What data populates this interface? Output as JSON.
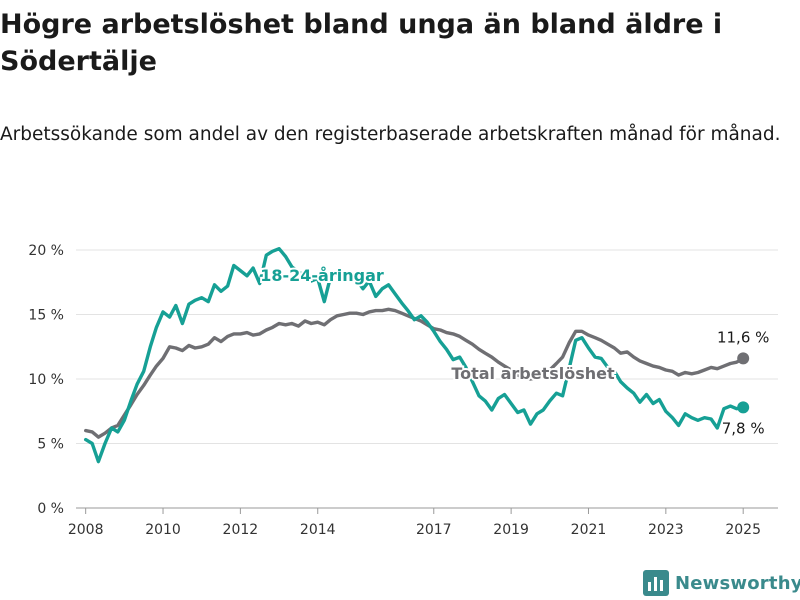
{
  "title": "Högre arbetslöshet bland unga än bland äldre i Södertälje",
  "subtitle": "Arbetssökande som andel av den registerbaserade arbetskraften månad för månad.",
  "brand": {
    "name": "Newsworthy",
    "color": "#3a8a8c",
    "icon": "bar-chart-logo-icon"
  },
  "chart_data": {
    "type": "line",
    "x_unit": "year",
    "xlim": [
      2007.75,
      2025.9
    ],
    "ylim": [
      0,
      20
    ],
    "y_ticks": [
      0,
      5,
      10,
      15,
      20
    ],
    "y_tick_labels": [
      "0 %",
      "5 %",
      "10 %",
      "15 %",
      "20 %"
    ],
    "x_ticks": [
      2008,
      2010,
      2012,
      2014,
      2017,
      2019,
      2021,
      2023,
      2025
    ],
    "x_tick_labels": [
      "2008",
      "2010",
      "2012",
      "2014",
      "2017",
      "2019",
      "2021",
      "2023",
      "2025"
    ],
    "grid": "horizontal",
    "legend": "none (direct labels)",
    "series": [
      {
        "name": "18-24-åringar",
        "color": "#16a095",
        "end_label": "7,8 %",
        "points": [
          [
            2008.0,
            5.3
          ],
          [
            2008.17,
            5.0
          ],
          [
            2008.33,
            3.6
          ],
          [
            2008.5,
            5.0
          ],
          [
            2008.67,
            6.2
          ],
          [
            2008.83,
            5.9
          ],
          [
            2009.0,
            6.8
          ],
          [
            2009.17,
            8.3
          ],
          [
            2009.33,
            9.6
          ],
          [
            2009.5,
            10.6
          ],
          [
            2009.67,
            12.5
          ],
          [
            2009.83,
            14.0
          ],
          [
            2010.0,
            15.2
          ],
          [
            2010.17,
            14.8
          ],
          [
            2010.33,
            15.7
          ],
          [
            2010.5,
            14.3
          ],
          [
            2010.67,
            15.8
          ],
          [
            2010.83,
            16.1
          ],
          [
            2011.0,
            16.3
          ],
          [
            2011.17,
            16.0
          ],
          [
            2011.33,
            17.3
          ],
          [
            2011.5,
            16.8
          ],
          [
            2011.67,
            17.2
          ],
          [
            2011.83,
            18.8
          ],
          [
            2012.0,
            18.4
          ],
          [
            2012.17,
            18.0
          ],
          [
            2012.33,
            18.6
          ],
          [
            2012.5,
            17.4
          ],
          [
            2012.67,
            19.6
          ],
          [
            2012.83,
            19.9
          ],
          [
            2013.0,
            20.1
          ],
          [
            2013.17,
            19.5
          ],
          [
            2013.33,
            18.7
          ],
          [
            2013.5,
            18.3
          ],
          [
            2013.67,
            18.0
          ],
          [
            2013.83,
            17.6
          ],
          [
            2014.0,
            17.8
          ],
          [
            2014.17,
            16.0
          ],
          [
            2014.33,
            17.9
          ],
          [
            2014.5,
            18.2
          ],
          [
            2014.67,
            17.8
          ],
          [
            2014.83,
            18.1
          ],
          [
            2015.0,
            17.7
          ],
          [
            2015.17,
            17.0
          ],
          [
            2015.33,
            17.6
          ],
          [
            2015.5,
            16.4
          ],
          [
            2015.67,
            17.0
          ],
          [
            2015.83,
            17.3
          ],
          [
            2016.0,
            16.6
          ],
          [
            2016.17,
            15.9
          ],
          [
            2016.33,
            15.3
          ],
          [
            2016.5,
            14.6
          ],
          [
            2016.67,
            14.9
          ],
          [
            2016.83,
            14.4
          ],
          [
            2017.0,
            13.7
          ],
          [
            2017.17,
            12.9
          ],
          [
            2017.33,
            12.3
          ],
          [
            2017.5,
            11.5
          ],
          [
            2017.67,
            11.7
          ],
          [
            2017.83,
            10.9
          ],
          [
            2018.0,
            9.8
          ],
          [
            2018.17,
            8.7
          ],
          [
            2018.33,
            8.3
          ],
          [
            2018.5,
            7.6
          ],
          [
            2018.67,
            8.5
          ],
          [
            2018.83,
            8.8
          ],
          [
            2019.0,
            8.1
          ],
          [
            2019.17,
            7.4
          ],
          [
            2019.33,
            7.6
          ],
          [
            2019.5,
            6.5
          ],
          [
            2019.67,
            7.3
          ],
          [
            2019.83,
            7.6
          ],
          [
            2020.0,
            8.3
          ],
          [
            2020.17,
            8.9
          ],
          [
            2020.33,
            8.7
          ],
          [
            2020.5,
            10.8
          ],
          [
            2020.67,
            13.0
          ],
          [
            2020.83,
            13.2
          ],
          [
            2021.0,
            12.4
          ],
          [
            2021.17,
            11.7
          ],
          [
            2021.33,
            11.6
          ],
          [
            2021.5,
            10.9
          ],
          [
            2021.67,
            10.6
          ],
          [
            2021.83,
            9.8
          ],
          [
            2022.0,
            9.3
          ],
          [
            2022.17,
            8.9
          ],
          [
            2022.33,
            8.2
          ],
          [
            2022.5,
            8.8
          ],
          [
            2022.67,
            8.1
          ],
          [
            2022.83,
            8.4
          ],
          [
            2023.0,
            7.5
          ],
          [
            2023.17,
            7.0
          ],
          [
            2023.33,
            6.4
          ],
          [
            2023.5,
            7.3
          ],
          [
            2023.67,
            7.0
          ],
          [
            2023.83,
            6.8
          ],
          [
            2024.0,
            7.0
          ],
          [
            2024.17,
            6.9
          ],
          [
            2024.33,
            6.2
          ],
          [
            2024.5,
            7.7
          ],
          [
            2024.67,
            7.9
          ],
          [
            2024.83,
            7.7
          ],
          [
            2025.0,
            7.8
          ]
        ]
      },
      {
        "name": "Total arbetslöshet",
        "color": "#6f6f73",
        "end_label": "11,6 %",
        "points": [
          [
            2008.0,
            6.0
          ],
          [
            2008.17,
            5.9
          ],
          [
            2008.33,
            5.5
          ],
          [
            2008.5,
            5.8
          ],
          [
            2008.67,
            6.2
          ],
          [
            2008.83,
            6.4
          ],
          [
            2009.0,
            7.2
          ],
          [
            2009.17,
            8.0
          ],
          [
            2009.33,
            8.8
          ],
          [
            2009.5,
            9.5
          ],
          [
            2009.67,
            10.3
          ],
          [
            2009.83,
            11.0
          ],
          [
            2010.0,
            11.6
          ],
          [
            2010.17,
            12.5
          ],
          [
            2010.33,
            12.4
          ],
          [
            2010.5,
            12.2
          ],
          [
            2010.67,
            12.6
          ],
          [
            2010.83,
            12.4
          ],
          [
            2011.0,
            12.5
          ],
          [
            2011.17,
            12.7
          ],
          [
            2011.33,
            13.2
          ],
          [
            2011.5,
            12.9
          ],
          [
            2011.67,
            13.3
          ],
          [
            2011.83,
            13.5
          ],
          [
            2012.0,
            13.5
          ],
          [
            2012.17,
            13.6
          ],
          [
            2012.33,
            13.4
          ],
          [
            2012.5,
            13.5
          ],
          [
            2012.67,
            13.8
          ],
          [
            2012.83,
            14.0
          ],
          [
            2013.0,
            14.3
          ],
          [
            2013.17,
            14.2
          ],
          [
            2013.33,
            14.3
          ],
          [
            2013.5,
            14.1
          ],
          [
            2013.67,
            14.5
          ],
          [
            2013.83,
            14.3
          ],
          [
            2014.0,
            14.4
          ],
          [
            2014.17,
            14.2
          ],
          [
            2014.33,
            14.6
          ],
          [
            2014.5,
            14.9
          ],
          [
            2014.67,
            15.0
          ],
          [
            2014.83,
            15.1
          ],
          [
            2015.0,
            15.1
          ],
          [
            2015.17,
            15.0
          ],
          [
            2015.33,
            15.2
          ],
          [
            2015.5,
            15.3
          ],
          [
            2015.67,
            15.3
          ],
          [
            2015.83,
            15.4
          ],
          [
            2016.0,
            15.3
          ],
          [
            2016.17,
            15.1
          ],
          [
            2016.33,
            14.9
          ],
          [
            2016.5,
            14.7
          ],
          [
            2016.67,
            14.5
          ],
          [
            2016.83,
            14.2
          ],
          [
            2017.0,
            13.9
          ],
          [
            2017.17,
            13.8
          ],
          [
            2017.33,
            13.6
          ],
          [
            2017.5,
            13.5
          ],
          [
            2017.67,
            13.3
          ],
          [
            2017.83,
            13.0
          ],
          [
            2018.0,
            12.7
          ],
          [
            2018.17,
            12.3
          ],
          [
            2018.33,
            12.0
          ],
          [
            2018.5,
            11.7
          ],
          [
            2018.67,
            11.3
          ],
          [
            2018.83,
            11.0
          ],
          [
            2019.0,
            10.7
          ],
          [
            2019.17,
            10.3
          ],
          [
            2019.33,
            10.1
          ],
          [
            2019.5,
            10.0
          ],
          [
            2019.67,
            10.1
          ],
          [
            2019.83,
            10.3
          ],
          [
            2020.0,
            10.7
          ],
          [
            2020.17,
            11.2
          ],
          [
            2020.33,
            11.7
          ],
          [
            2020.5,
            12.8
          ],
          [
            2020.67,
            13.7
          ],
          [
            2020.83,
            13.7
          ],
          [
            2021.0,
            13.4
          ],
          [
            2021.17,
            13.2
          ],
          [
            2021.33,
            13.0
          ],
          [
            2021.5,
            12.7
          ],
          [
            2021.67,
            12.4
          ],
          [
            2021.83,
            12.0
          ],
          [
            2022.0,
            12.1
          ],
          [
            2022.17,
            11.7
          ],
          [
            2022.33,
            11.4
          ],
          [
            2022.5,
            11.2
          ],
          [
            2022.67,
            11.0
          ],
          [
            2022.83,
            10.9
          ],
          [
            2023.0,
            10.7
          ],
          [
            2023.17,
            10.6
          ],
          [
            2023.33,
            10.3
          ],
          [
            2023.5,
            10.5
          ],
          [
            2023.67,
            10.4
          ],
          [
            2023.83,
            10.5
          ],
          [
            2024.0,
            10.7
          ],
          [
            2024.17,
            10.9
          ],
          [
            2024.33,
            10.8
          ],
          [
            2024.5,
            11.0
          ],
          [
            2024.67,
            11.2
          ],
          [
            2024.83,
            11.3
          ],
          [
            2025.0,
            11.6
          ]
        ]
      }
    ]
  }
}
